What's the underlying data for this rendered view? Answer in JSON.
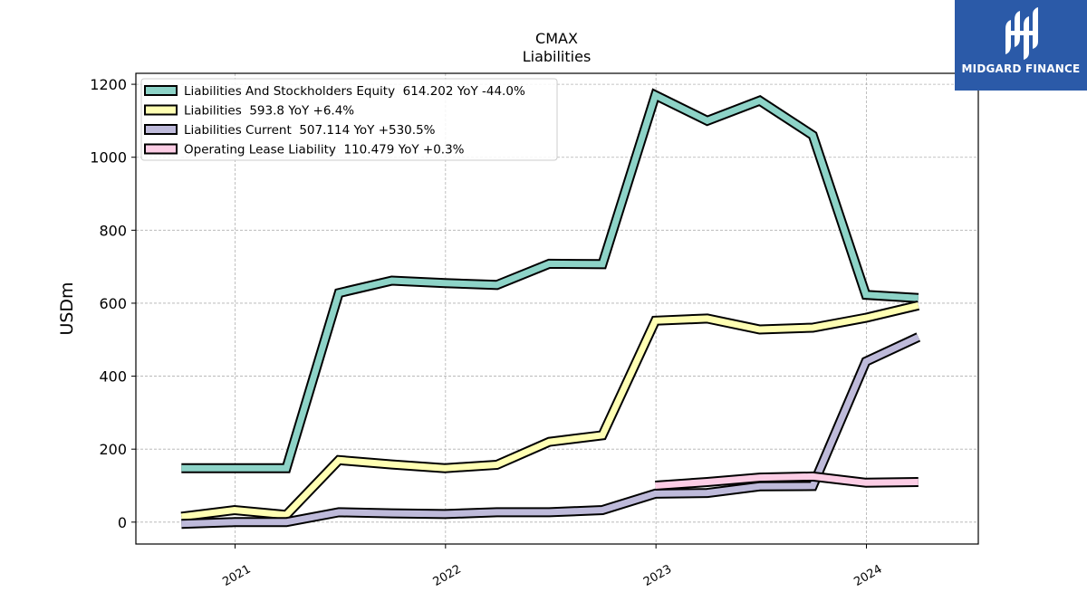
{
  "chart_data": {
    "type": "line",
    "title": "CMAX",
    "subtitle": "Liabilities",
    "ylabel": "USDm",
    "xlabel": "",
    "ylim": [
      -60,
      1230
    ],
    "xlim": [
      "2020-07-13",
      "2024-07-13"
    ],
    "yticks": [
      0,
      200,
      400,
      600,
      800,
      1000,
      1200
    ],
    "xticks": [
      "2021",
      "2022",
      "2023",
      "2024"
    ],
    "xtick_dates": [
      "2021-01-01",
      "2022-01-01",
      "2023-01-01",
      "2024-01-01"
    ],
    "grid": true,
    "legend_position": "top-left",
    "dates": [
      "2020-09-30",
      "2020-12-31",
      "2021-03-31",
      "2021-06-30",
      "2021-09-30",
      "2021-12-31",
      "2022-03-31",
      "2022-06-30",
      "2022-09-30",
      "2022-12-31",
      "2023-03-31",
      "2023-06-30",
      "2023-09-30",
      "2023-12-31",
      "2024-03-31"
    ],
    "series": [
      {
        "name": "Liabilities And Stockholders Equity",
        "legend": "Liabilities And Stockholders Equity  614.202 YoY -44.0%",
        "color": "#8dd3c7",
        "values": [
          148,
          148,
          148,
          628,
          662,
          655,
          650,
          708,
          707,
          1170,
          1100,
          1155,
          1060,
          623,
          614
        ]
      },
      {
        "name": "Liabilities",
        "legend": "Liabilities  593.8 YoY +6.4%",
        "color": "#ffffb3",
        "values": [
          15,
          33,
          20,
          170,
          158,
          148,
          157,
          220,
          238,
          552,
          558,
          528,
          533,
          560,
          594
        ]
      },
      {
        "name": "Liabilities Current",
        "legend": "Liabilities Current  507.114 YoY +530.5%",
        "color": "#bebada",
        "values": [
          -5,
          0,
          0,
          27,
          24,
          22,
          27,
          27,
          33,
          78,
          80,
          98,
          99,
          440,
          507
        ]
      },
      {
        "name": "Operating Lease Liability",
        "legend": "Operating Lease Liability  110.479 YoY +0.3%",
        "color": "#fccde5",
        "values": [
          null,
          null,
          null,
          null,
          null,
          null,
          null,
          null,
          null,
          100,
          110,
          122,
          125,
          108,
          110
        ]
      }
    ]
  },
  "logo": {
    "text": "MIDGARD FINANCE",
    "color": "#2b5aa8"
  }
}
